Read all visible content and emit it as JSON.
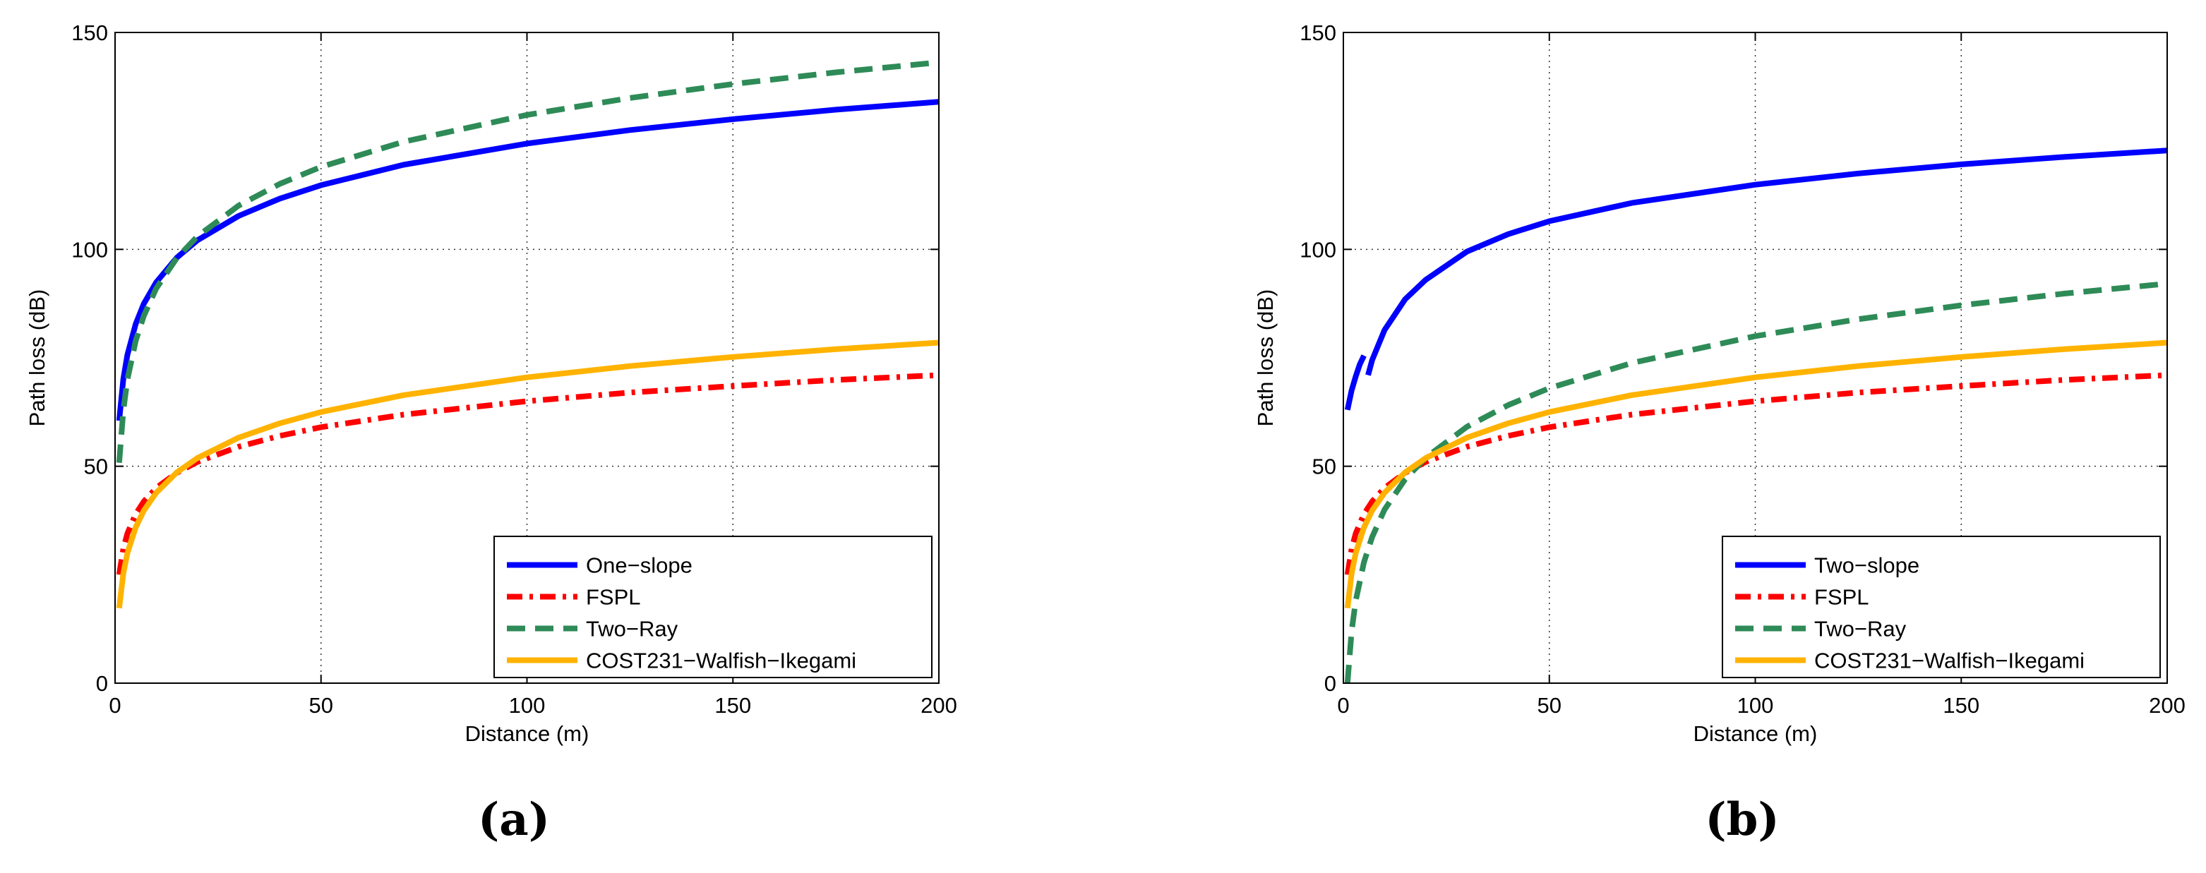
{
  "chart_data": [
    {
      "type": "line",
      "panel_label": "(a)",
      "xlabel": "Distance (m)",
      "ylabel": "Path loss (dB)",
      "xlim": [
        0,
        200
      ],
      "ylim": [
        0,
        150
      ],
      "x_ticks": [
        0,
        50,
        100,
        150,
        200
      ],
      "y_ticks": [
        0,
        50,
        100,
        150
      ],
      "grid": true,
      "legend_position": "bottom-right",
      "series": [
        {
          "name": "One−slope",
          "color": "#0000ff",
          "dash": "solid",
          "x": [
            1,
            2,
            3,
            5,
            7,
            10,
            15,
            20,
            30,
            40,
            50,
            70,
            100,
            125,
            150,
            175,
            200
          ],
          "y": [
            60.5,
            70.1,
            75.7,
            82.8,
            87.5,
            92.4,
            98.1,
            102.1,
            107.7,
            111.7,
            114.8,
            119.5,
            124.4,
            127.5,
            130.0,
            132.2,
            134.0
          ]
        },
        {
          "name": "FSPL",
          "color": "#ff0000",
          "dash": "dashdot",
          "x": [
            1,
            2,
            3,
            5,
            7,
            10,
            15,
            20,
            30,
            40,
            50,
            70,
            100,
            125,
            150,
            175,
            200
          ],
          "y": [
            25.0,
            31.0,
            34.5,
            39.0,
            41.9,
            45.0,
            48.5,
            51.0,
            54.5,
            57.0,
            59.0,
            61.9,
            65.0,
            67.0,
            68.5,
            69.9,
            71.0
          ]
        },
        {
          "name": "Two−Ray",
          "color": "#2e8b57",
          "dash": "dashed",
          "x": [
            1,
            2,
            3,
            5,
            7,
            10,
            15,
            20,
            30,
            40,
            50,
            70,
            100,
            125,
            150,
            175,
            200
          ],
          "y": [
            50.8,
            62.9,
            70.0,
            78.9,
            84.7,
            91.0,
            98.0,
            103.0,
            110.1,
            115.1,
            119.0,
            124.8,
            131.0,
            134.9,
            138.1,
            140.8,
            143.1
          ]
        },
        {
          "name": "COST231−Walfish−Ikegami",
          "color": "#ffb300",
          "dash": "solid",
          "x": [
            1,
            2,
            3,
            5,
            7,
            10,
            15,
            20,
            30,
            40,
            50,
            70,
            100,
            125,
            150,
            175,
            200
          ],
          "y": [
            17.3,
            25.3,
            30.0,
            35.9,
            39.8,
            43.9,
            48.6,
            51.9,
            56.6,
            59.9,
            62.5,
            66.4,
            70.5,
            73.1,
            75.2,
            77.0,
            78.5
          ]
        }
      ]
    },
    {
      "type": "line",
      "panel_label": "(b)",
      "xlabel": "Distance (m)",
      "ylabel": "Path loss (dB)",
      "xlim": [
        0,
        200
      ],
      "ylim": [
        0,
        150
      ],
      "x_ticks": [
        0,
        50,
        100,
        150,
        200
      ],
      "y_ticks": [
        0,
        50,
        100,
        150
      ],
      "grid": true,
      "legend_position": "bottom-right",
      "series": [
        {
          "name": "Two−slope",
          "color": "#0000ff",
          "dash": "solid",
          "x": [
            1,
            2,
            3,
            4,
            5
          ],
          "y": [
            63.0,
            67.5,
            70.7,
            73.5,
            75.5
          ]
        },
        {
          "name": "Two−slope (segment 2)",
          "legend": false,
          "color": "#0000ff",
          "dash": "solid",
          "x": [
            6,
            7,
            10,
            15,
            20,
            30,
            40,
            50,
            70,
            100,
            125,
            150,
            175,
            200
          ],
          "y": [
            71.0,
            74.5,
            81.4,
            88.5,
            93.0,
            99.5,
            103.5,
            106.5,
            110.7,
            114.9,
            117.5,
            119.6,
            121.3,
            122.8
          ]
        },
        {
          "name": "FSPL",
          "color": "#ff0000",
          "dash": "dashdot",
          "x": [
            1,
            2,
            3,
            5,
            7,
            10,
            15,
            20,
            30,
            40,
            50,
            70,
            100,
            125,
            150,
            175,
            200
          ],
          "y": [
            25.0,
            31.0,
            34.5,
            39.0,
            41.9,
            45.0,
            48.5,
            51.0,
            54.5,
            57.0,
            59.0,
            61.9,
            65.0,
            67.0,
            68.5,
            69.9,
            71.0
          ]
        },
        {
          "name": "Two−Ray",
          "color": "#2e8b57",
          "dash": "dashed",
          "x": [
            1,
            2,
            3,
            5,
            7,
            10,
            15,
            20,
            30,
            40,
            50,
            70,
            100,
            125,
            150,
            175,
            200
          ],
          "y": [
            0,
            12.0,
            19.0,
            27.9,
            33.7,
            40.0,
            47.0,
            52.0,
            59.1,
            64.1,
            68.0,
            73.8,
            80.0,
            83.9,
            87.1,
            89.8,
            92.1
          ]
        },
        {
          "name": "COST231−Walfish−Ikegami",
          "color": "#ffb300",
          "dash": "solid",
          "x": [
            1,
            2,
            3,
            5,
            7,
            10,
            15,
            20,
            30,
            40,
            50,
            70,
            100,
            125,
            150,
            175,
            200
          ],
          "y": [
            17.3,
            25.3,
            30.0,
            35.9,
            39.8,
            43.9,
            48.6,
            51.9,
            56.6,
            59.9,
            62.5,
            66.4,
            70.5,
            73.1,
            75.2,
            77.0,
            78.5
          ]
        }
      ]
    }
  ]
}
